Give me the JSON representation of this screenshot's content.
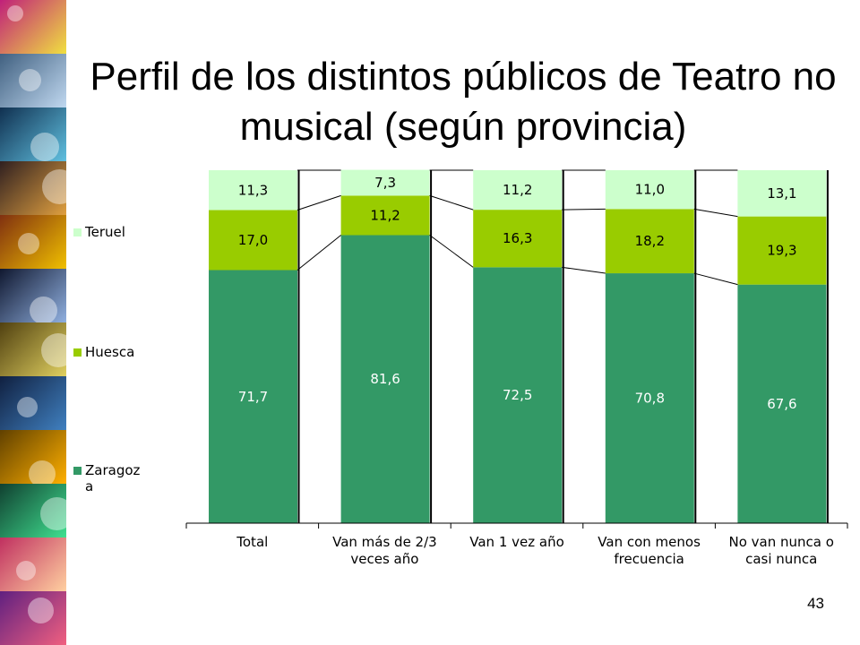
{
  "slide": {
    "title": "Perfil de los distintos públicos de Teatro no musical (según provincia)",
    "page_number": "43"
  },
  "colors": {
    "zaragoza": "#339966",
    "huesca": "#99cc00",
    "teruel": "#ccffcc"
  },
  "chart_data": {
    "type": "bar",
    "stacked": true,
    "categories": [
      [
        "Total"
      ],
      [
        "Van más de 2/3",
        "veces año"
      ],
      [
        "Van 1 vez año"
      ],
      [
        "Van con menos",
        "frecuencia"
      ],
      [
        "No van nunca o",
        "casi nunca"
      ]
    ],
    "series": [
      {
        "name": "Zaragoz a",
        "color": "#339966",
        "values": [
          71.7,
          81.6,
          72.5,
          70.8,
          67.6
        ],
        "labels": [
          "71,7",
          "81,6",
          "72,5",
          "70,8",
          "67,6"
        ]
      },
      {
        "name": "Huesca",
        "color": "#99cc00",
        "values": [
          17.0,
          11.2,
          16.3,
          18.2,
          19.3
        ],
        "labels": [
          "17,0",
          "11,2",
          "16,3",
          "18,2",
          "19,3"
        ]
      },
      {
        "name": "Teruel",
        "color": "#ccffcc",
        "values": [
          11.3,
          7.3,
          11.2,
          11.0,
          13.1
        ],
        "labels": [
          "11,3",
          "7,3",
          "11,2",
          "11,0",
          "13,1"
        ]
      }
    ],
    "ylim": [
      0,
      100
    ],
    "series_lines": true,
    "legend_position": "left",
    "grid": false
  }
}
